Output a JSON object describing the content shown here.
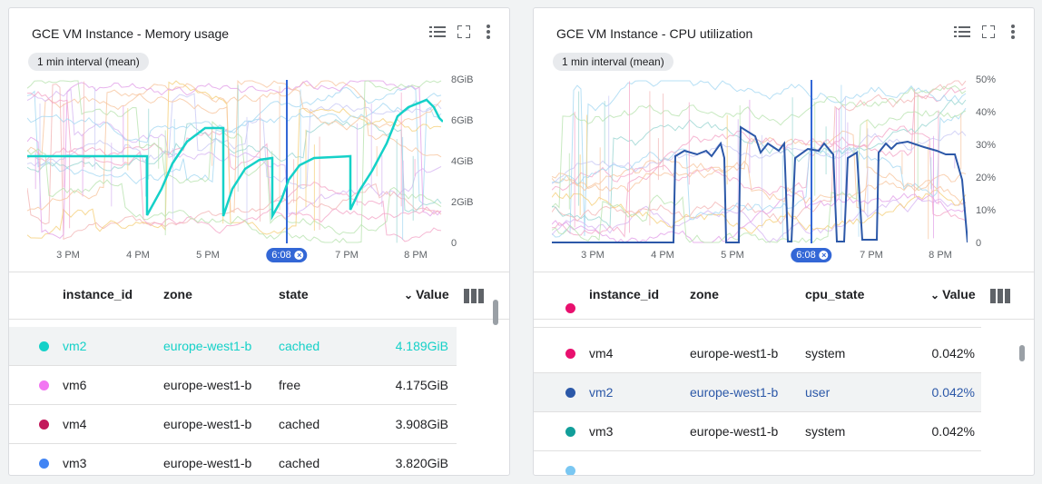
{
  "colors": {
    "accent_mem": "#15d1c8",
    "accent_cpu": "#2c58a8",
    "cursor": "#3367d6"
  },
  "cards": [
    {
      "id": "mem",
      "title": "GCE VM Instance - Memory usage",
      "interval_chip": "1 min interval (mean)",
      "icons": [
        "legend-list-icon",
        "fullscreen-icon",
        "more-vert-icon"
      ],
      "y_ticks": [
        "8GiB",
        "6GiB",
        "4GiB",
        "2GiB",
        "0"
      ],
      "x_ticks": [
        "3 PM",
        "4 PM",
        "5 PM",
        "7 PM",
        "8 PM"
      ],
      "cursor_label": "6:08",
      "columns": [
        "instance_id",
        "zone",
        "state",
        "Value"
      ],
      "rows": [
        {
          "color": "#15d1c8",
          "instance_id": "vm2",
          "zone": "europe-west1-b",
          "state": "cached",
          "value": "4.189GiB",
          "highlight": true
        },
        {
          "color": "#f277f2",
          "instance_id": "vm6",
          "zone": "europe-west1-b",
          "state": "free",
          "value": "4.175GiB",
          "highlight": false
        },
        {
          "color": "#c2185b",
          "instance_id": "vm4",
          "zone": "europe-west1-b",
          "state": "cached",
          "value": "3.908GiB",
          "highlight": false
        },
        {
          "color": "#4285f4",
          "instance_id": "vm3",
          "zone": "europe-west1-b",
          "state": "cached",
          "value": "3.820GiB",
          "highlight": false
        }
      ]
    },
    {
      "id": "cpu",
      "title": "GCE VM Instance - CPU utilization",
      "interval_chip": "1 min interval (mean)",
      "icons": [
        "legend-list-icon",
        "fullscreen-icon",
        "more-vert-icon"
      ],
      "y_ticks": [
        "50%",
        "40%",
        "30%",
        "20%",
        "10%",
        "0"
      ],
      "x_ticks": [
        "3 PM",
        "4 PM",
        "5 PM",
        "7 PM",
        "8 PM"
      ],
      "cursor_label": "6:08",
      "columns": [
        "instance_id",
        "zone",
        "cpu_state",
        "Value"
      ],
      "rows": [
        {
          "color": "#e8106e",
          "instance_id": "vm4",
          "zone": "europe-west1-b",
          "state": "system",
          "value": "0.042%",
          "highlight": false
        },
        {
          "color": "#2c58a8",
          "instance_id": "vm2",
          "zone": "europe-west1-b",
          "state": "user",
          "value": "0.042%",
          "highlight": true
        },
        {
          "color": "#129e9a",
          "instance_id": "vm3",
          "zone": "europe-west1-b",
          "state": "system",
          "value": "0.042%",
          "highlight": false
        }
      ]
    }
  ]
}
